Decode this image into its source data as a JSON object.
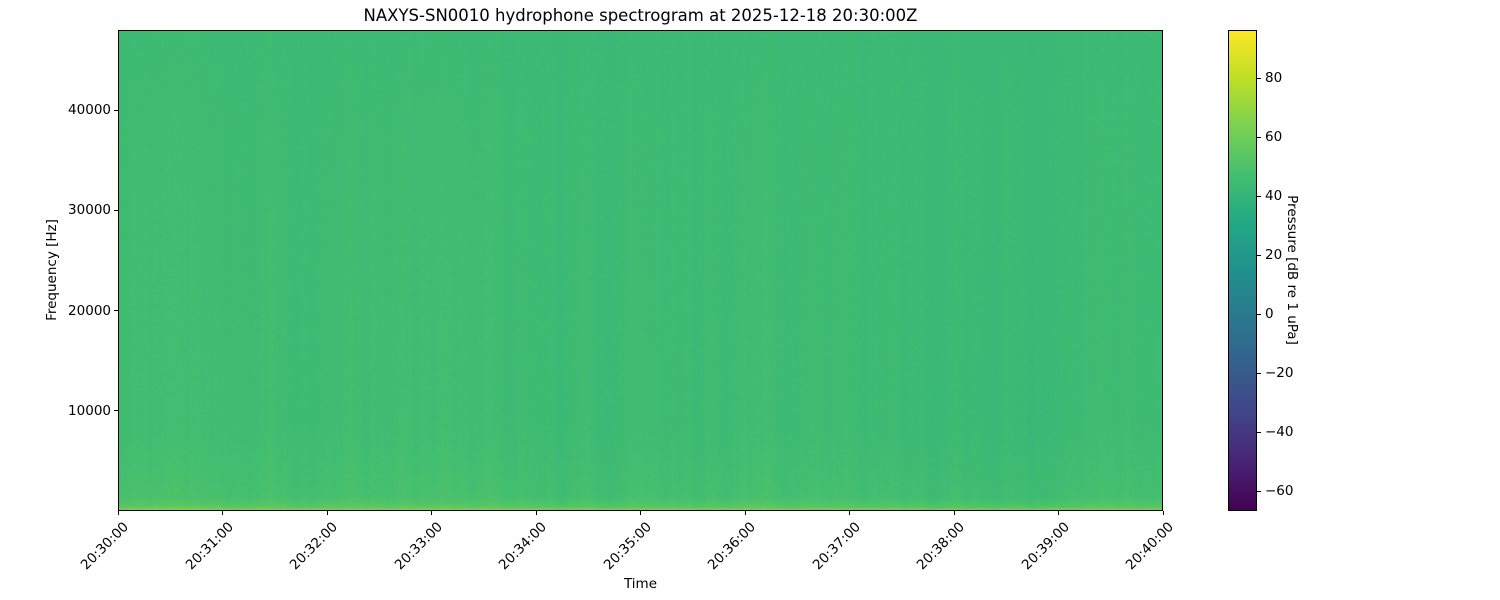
{
  "chart_data": {
    "type": "heatmap",
    "title": "NAXYS-SN0010 hydrophone spectrogram at 2025-12-18 20:30:00Z",
    "xlabel": "Time",
    "ylabel": "Frequency [Hz]",
    "x_ticks": [
      "20:30:00",
      "20:31:00",
      "20:32:00",
      "20:33:00",
      "20:34:00",
      "20:35:00",
      "20:36:00",
      "20:37:00",
      "20:38:00",
      "20:39:00",
      "20:40:00"
    ],
    "x_tick_rotation_deg": 45,
    "y_ticks": [
      {
        "value": 10000,
        "label": "10000"
      },
      {
        "value": 20000,
        "label": "20000"
      },
      {
        "value": 30000,
        "label": "30000"
      },
      {
        "value": 40000,
        "label": "40000"
      }
    ],
    "ylim": [
      0,
      48000
    ],
    "grid": false,
    "legend": "none",
    "colormap": "viridis",
    "viridis_stops": [
      "#440154",
      "#482475",
      "#414487",
      "#355f8d",
      "#2a788e",
      "#21918c",
      "#22a884",
      "#44bf70",
      "#7ad151",
      "#bddf26",
      "#fde725"
    ],
    "colorbar": {
      "label": "Pressure [dB re 1 uPa]",
      "position": "right",
      "vmin": -66.7,
      "vmax": 96.3,
      "ticks": [
        {
          "value": 80,
          "label": "80"
        },
        {
          "value": 60,
          "label": "60"
        },
        {
          "value": 40,
          "label": "40"
        },
        {
          "value": 20,
          "label": "20"
        },
        {
          "value": 0,
          "label": "0"
        },
        {
          "value": -20,
          "label": "−20"
        },
        {
          "value": -40,
          "label": "−40"
        },
        {
          "value": -60,
          "label": "−60"
        }
      ]
    },
    "field": {
      "description": "Near-uniform broadband ambient noise around 43-46 dB re 1 uPa (green) across 0-48 kHz for the full 10 minutes, with faint vertical time striations, slightly elevated levels below ~9 kHz, and a bright ~56-60 dB band at the lowest frequencies along the bottom edge.",
      "background_db": 44,
      "pixel_noise_db": 1.2,
      "striation_db": 1.6,
      "low_band_max_hz": 9000,
      "low_band_boost_db": 3.2,
      "surface_band_max_hz": 1400,
      "surface_band_db": 56,
      "bottom_line_db": 60,
      "top_fade_db": 0.6,
      "seed": 20251218
    }
  }
}
